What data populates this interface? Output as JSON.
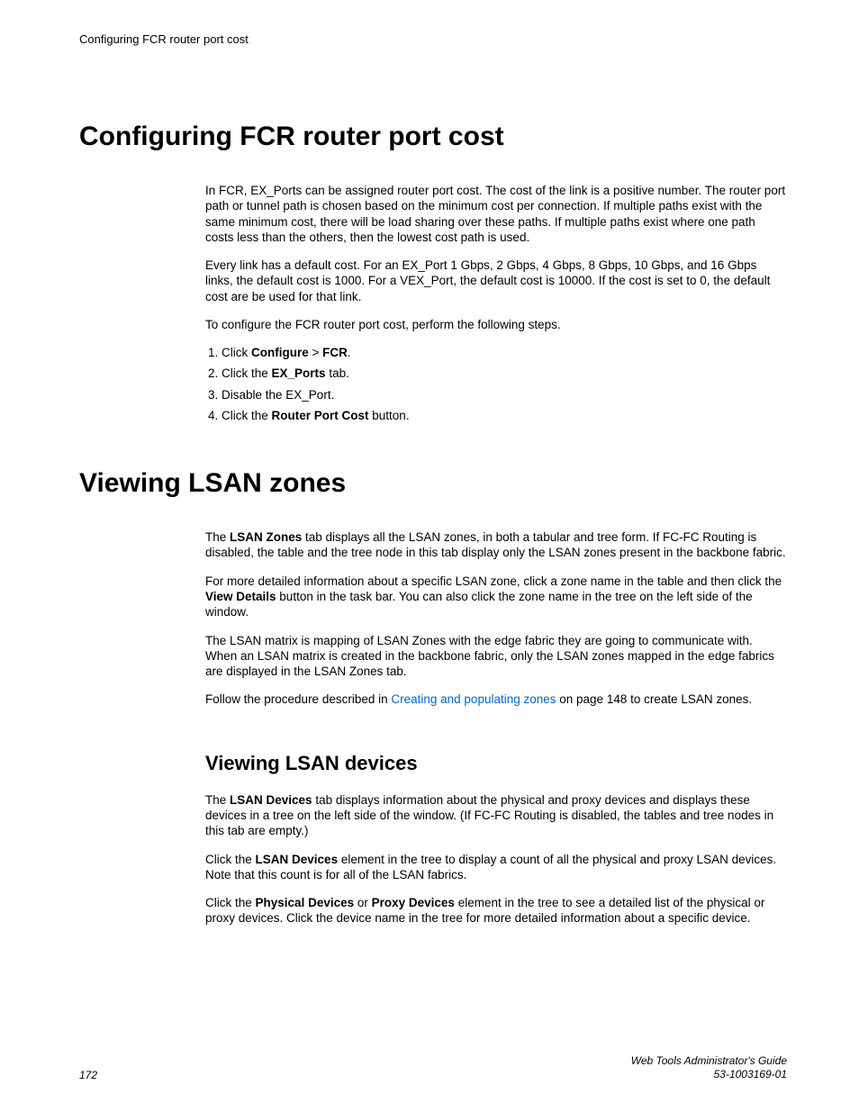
{
  "header": {
    "running_title": "Configuring FCR router port cost"
  },
  "section1": {
    "heading": "Configuring FCR router port cost",
    "p1": "In FCR, EX_Ports can be assigned router port cost. The cost of the link is a positive number. The router port path or tunnel path is chosen based on the minimum cost per connection. If multiple paths exist with the same minimum cost, there will be load sharing over these paths. If multiple paths exist where one path costs less than the others, then the lowest cost path is used.",
    "p2": "Every link has a default cost. For an EX_Port 1 Gbps, 2 Gbps, 4 Gbps, 8 Gbps, 10 Gbps, and 16 Gbps links, the default cost is 1000. For a VEX_Port, the default cost is 10000. If the cost is set to 0, the default cost are be used for that link.",
    "p3": "To configure the FCR router port cost, perform the following steps.",
    "steps": {
      "s1_a": "Click ",
      "s1_b": "Configure",
      "s1_c": "  > ",
      "s1_d": "FCR",
      "s1_e": ".",
      "s2_a": "Click the ",
      "s2_b": "EX_Ports",
      "s2_c": " tab.",
      "s3": "Disable the EX_Port.",
      "s4_a": "Click the ",
      "s4_b": "Router Port Cost",
      "s4_c": " button."
    }
  },
  "section2": {
    "heading": "Viewing LSAN zones",
    "p1_a": "The ",
    "p1_b": "LSAN Zones",
    "p1_c": " tab displays all the LSAN zones, in both a tabular and tree form. If FC-FC Routing is disabled, the table and the tree node in this tab display only the LSAN zones present in the backbone fabric.",
    "p2_a": "For more detailed information about a specific LSAN zone, click a zone name in the table and then click the ",
    "p2_b": "View Details",
    "p2_c": " button in the task bar. You can also click the zone name in the tree on the left side of the window.",
    "p3": "The LSAN matrix is mapping of LSAN Zones with the edge fabric they are going to communicate with. When an LSAN matrix is created in the backbone fabric, only the LSAN zones mapped in the edge fabrics are displayed in the LSAN Zones tab.",
    "p4_a": "Follow the procedure described in ",
    "p4_link": "Creating and populating zones",
    "p4_b": " on page 148 to create LSAN zones.",
    "sub": {
      "heading": "Viewing LSAN devices",
      "p1_a": "The ",
      "p1_b": "LSAN Devices",
      "p1_c": " tab displays information about the physical and proxy devices and displays these devices in a tree on the left side of the window. (If FC-FC Routing is disabled, the tables and tree nodes in this tab are empty.)",
      "p2_a": "Click the ",
      "p2_b": "LSAN Devices",
      "p2_c": " element in the tree to display a count of all the physical and proxy LSAN devices. Note that this count is for all of the LSAN fabrics.",
      "p3_a": "Click the ",
      "p3_b": "Physical Devices",
      "p3_c": " or ",
      "p3_d": "Proxy Devices",
      "p3_e": " element in the tree to see a detailed list of the physical or proxy devices. Click the device name in the tree for more detailed information about a specific device."
    }
  },
  "footer": {
    "page_number": "172",
    "doc_title": "Web Tools Administrator's Guide",
    "doc_id": "53-1003169-01"
  },
  "colors": {
    "text": "#000000",
    "link": "#0066cc",
    "background": "#ffffff"
  }
}
